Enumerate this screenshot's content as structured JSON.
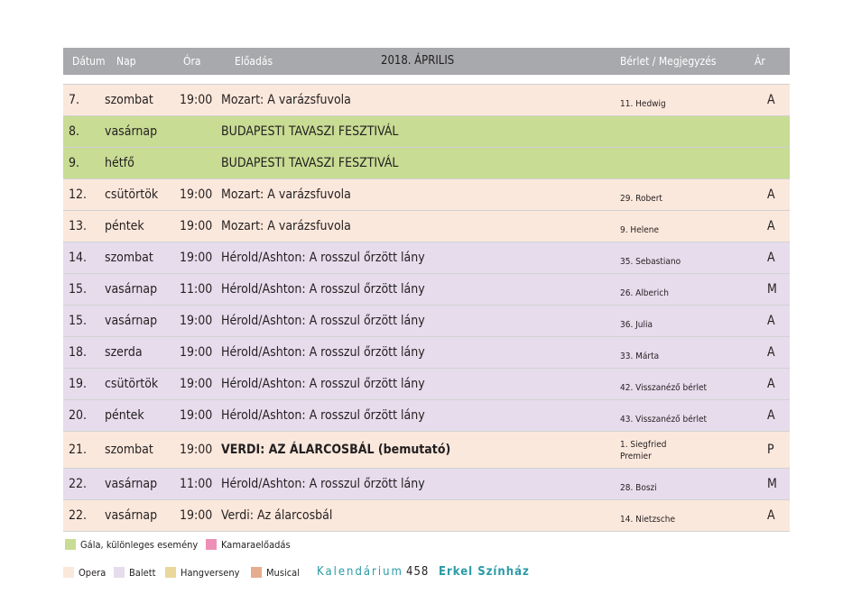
{
  "header": {
    "date": "Dátum",
    "day": "Nap",
    "time": "Óra",
    "show": "Előadás",
    "month": "2018. ÁPRILIS",
    "pass": "Bérlet / Megjegyzés",
    "price": "Ár"
  },
  "rows": [
    {
      "date": "7.",
      "day": "szombat",
      "time": "19:00",
      "show": "Mozart: A varázsfuvola",
      "note": "11. Hedwig",
      "note2": "",
      "price": "A",
      "type": "opera",
      "bold": false
    },
    {
      "date": "8.",
      "day": "vasárnap",
      "time": "",
      "show": "BUDAPESTI TAVASZI FESZTIVÁL",
      "note": "",
      "note2": "",
      "price": "",
      "type": "gala",
      "bold": false
    },
    {
      "date": "9.",
      "day": "hétfő",
      "time": "",
      "show": "BUDAPESTI TAVASZI FESZTIVÁL",
      "note": "",
      "note2": "",
      "price": "",
      "type": "gala",
      "bold": false
    },
    {
      "date": "12.",
      "day": "csütörtök",
      "time": "19:00",
      "show": "Mozart: A varázsfuvola",
      "note": "29. Robert",
      "note2": "",
      "price": "A",
      "type": "opera",
      "bold": false
    },
    {
      "date": "13.",
      "day": "péntek",
      "time": "19:00",
      "show": "Mozart: A varázsfuvola",
      "note": "9. Helene",
      "note2": "",
      "price": "A",
      "type": "opera",
      "bold": false
    },
    {
      "date": "14.",
      "day": "szombat",
      "time": "19:00",
      "show": "Hérold/Ashton: A rosszul őrzött lány",
      "note": "35. Sebastiano",
      "note2": "",
      "price": "A",
      "type": "balett",
      "bold": false
    },
    {
      "date": "15.",
      "day": "vasárnap",
      "time": "11:00",
      "show": "Hérold/Ashton: A rosszul őrzött lány",
      "note": "26. Alberich",
      "note2": "",
      "price": "M",
      "type": "balett",
      "bold": false
    },
    {
      "date": "15.",
      "day": "vasárnap",
      "time": "19:00",
      "show": "Hérold/Ashton: A rosszul őrzött lány",
      "note": "36. Julia",
      "note2": "",
      "price": "A",
      "type": "balett",
      "bold": false
    },
    {
      "date": "18.",
      "day": "szerda",
      "time": "19:00",
      "show": "Hérold/Ashton: A rosszul őrzött lány",
      "note": "33. Márta",
      "note2": "",
      "price": "A",
      "type": "balett",
      "bold": false
    },
    {
      "date": "19.",
      "day": "csütörtök",
      "time": "19:00",
      "show": "Hérold/Ashton: A rosszul őrzött lány",
      "note": "42. Visszanéző bérlet",
      "note2": "",
      "price": "A",
      "type": "balett",
      "bold": false
    },
    {
      "date": "20.",
      "day": "péntek",
      "time": "19:00",
      "show": "Hérold/Ashton: A rosszul őrzött lány",
      "note": "43. Visszanéző bérlet",
      "note2": "",
      "price": "A",
      "type": "balett",
      "bold": false
    },
    {
      "date": "21.",
      "day": "szombat",
      "time": "19:00",
      "show": "VERDI: AZ ÁLARCOSBÁL (bemutató)",
      "note": "1. Siegfried",
      "note2": "Premier",
      "price": "P",
      "type": "opera",
      "bold": true
    },
    {
      "date": "22.",
      "day": "vasárnap",
      "time": "11:00",
      "show": "Hérold/Ashton: A rosszul őrzött lány",
      "note": "28. Boszi",
      "note2": "",
      "price": "M",
      "type": "balett",
      "bold": false
    },
    {
      "date": "22.",
      "day": "vasárnap",
      "time": "19:00",
      "show": "Verdi: Az álarcosbál",
      "note": "14. Nietzsche",
      "note2": "",
      "price": "A",
      "type": "opera",
      "bold": false
    }
  ],
  "legend": {
    "gala": {
      "label": "Gála, különleges esemény",
      "color": "#c8dc94"
    },
    "kamara": {
      "label": "Kamaraelőadás",
      "color": "#ee8fb7"
    },
    "opera": {
      "label": "Opera",
      "color": "#fbe8dc"
    },
    "balett": {
      "label": "Balett",
      "color": "#e6dcec"
    },
    "hangverseny": {
      "label": "Hangverseny",
      "color": "#ead79c"
    },
    "musical": {
      "label": "Musical",
      "color": "#e5ad8e"
    }
  },
  "footer": {
    "left": "Kalendárium",
    "page": "458",
    "right": "Erkel Színház",
    "accent": "#2a9aa6"
  }
}
